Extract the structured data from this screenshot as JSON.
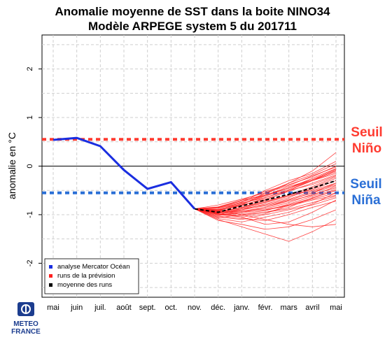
{
  "chart_data": {
    "type": "line",
    "title": "Anomalie moyenne de SST dans la boite NINO34",
    "subtitle": "Modèle ARPEGE system 5 du 201711",
    "ylabel": "anomalie en °C",
    "xlabel": "",
    "ylim": [
      -2.7,
      2.7
    ],
    "yticks": [
      -2,
      -1,
      0,
      1,
      2
    ],
    "categories": [
      "mai",
      "juin",
      "juil.",
      "août",
      "sept.",
      "oct.",
      "nov.",
      "déc.",
      "janv.",
      "févr.",
      "mars",
      "avril",
      "mai"
    ],
    "grid": true,
    "legend_position": "bottom-left",
    "legend": [
      {
        "label": "analyse Mercator Océan",
        "color": "#1a2ee0"
      },
      {
        "label": "runs de la prévision",
        "color": "#ff2020"
      },
      {
        "label": "moyenne des runs",
        "color": "#000000"
      }
    ],
    "thresholds": [
      {
        "label_line1": "Seuil",
        "label_line2": "Niño",
        "value": 0.55,
        "color": "#ff3b30"
      },
      {
        "label_line1": "Seuil",
        "label_line2": "Niña",
        "value": -0.55,
        "color": "#2a6fd6"
      }
    ],
    "analysis": {
      "name": "analyse Mercator Océan",
      "color": "#1a2ee0",
      "x": [
        0,
        1,
        2,
        3,
        4,
        5,
        6
      ],
      "y": [
        0.54,
        0.58,
        0.41,
        -0.08,
        -0.47,
        -0.33,
        -0.88
      ]
    },
    "mean_runs": {
      "name": "moyenne des runs",
      "color": "#000000",
      "x": [
        6,
        7,
        8,
        9,
        10,
        11,
        12
      ],
      "y": [
        -0.88,
        -0.95,
        -0.82,
        -0.7,
        -0.58,
        -0.45,
        -0.3
      ]
    },
    "runs": {
      "name": "runs de la prévision",
      "color": "#ff2020",
      "x": [
        6,
        7,
        8,
        9,
        10,
        11,
        12
      ],
      "members": [
        [
          -0.88,
          -0.92,
          -0.8,
          -0.55,
          -0.35,
          -0.1,
          0.28
        ],
        [
          -0.88,
          -1.0,
          -0.95,
          -0.85,
          -0.7,
          -0.55,
          -0.4
        ],
        [
          -0.88,
          -0.96,
          -1.05,
          -1.2,
          -1.15,
          -0.95,
          -0.7
        ],
        [
          -0.88,
          -0.85,
          -0.7,
          -0.6,
          -0.45,
          -0.25,
          -0.05
        ],
        [
          -0.88,
          -1.1,
          -1.25,
          -1.4,
          -1.55,
          -1.35,
          -1.1
        ],
        [
          -0.88,
          -0.9,
          -0.75,
          -0.5,
          -0.3,
          -0.15,
          0.1
        ],
        [
          -0.88,
          -0.98,
          -0.88,
          -0.75,
          -0.62,
          -0.5,
          -0.35
        ],
        [
          -0.88,
          -0.8,
          -0.68,
          -0.55,
          -0.4,
          -0.2,
          -0.02
        ],
        [
          -0.88,
          -1.02,
          -0.95,
          -0.9,
          -0.82,
          -0.7,
          -0.6
        ],
        [
          -0.88,
          -0.95,
          -0.85,
          -0.7,
          -0.5,
          -0.3,
          -0.15
        ],
        [
          -0.88,
          -0.9,
          -1.0,
          -1.1,
          -1.2,
          -1.25,
          -1.2
        ],
        [
          -0.88,
          -0.92,
          -0.78,
          -0.6,
          -0.42,
          -0.28,
          -0.1
        ],
        [
          -0.88,
          -0.97,
          -0.92,
          -0.88,
          -0.75,
          -0.58,
          -0.45
        ],
        [
          -0.88,
          -0.85,
          -0.72,
          -0.58,
          -0.35,
          -0.18,
          0.05
        ],
        [
          -0.88,
          -1.05,
          -1.1,
          -1.0,
          -0.9,
          -0.8,
          -0.65
        ],
        [
          -0.88,
          -0.93,
          -0.85,
          -0.72,
          -0.6,
          -0.48,
          -0.3
        ],
        [
          -0.88,
          -0.99,
          -1.02,
          -0.95,
          -0.85,
          -0.65,
          -0.5
        ],
        [
          -0.88,
          -0.87,
          -0.76,
          -0.65,
          -0.5,
          -0.38,
          -0.2
        ],
        [
          -0.88,
          -1.12,
          -1.2,
          -1.3,
          -1.25,
          -1.1,
          -0.9
        ],
        [
          -0.88,
          -0.94,
          -0.88,
          -0.8,
          -0.68,
          -0.52,
          -0.38
        ],
        [
          -0.88,
          -0.9,
          -0.82,
          -0.65,
          -0.48,
          -0.3,
          -0.12
        ],
        [
          -0.88,
          -1.0,
          -0.98,
          -0.92,
          -0.78,
          -0.62,
          -0.48
        ],
        [
          -0.88,
          -0.95,
          -0.9,
          -0.78,
          -0.65,
          -0.45,
          -0.25
        ],
        [
          -0.88,
          -1.08,
          -1.15,
          -1.05,
          -0.95,
          -0.78,
          -0.55
        ],
        [
          -0.88,
          -0.86,
          -0.74,
          -0.6,
          -0.45,
          -0.3,
          -0.08
        ],
        [
          -0.88,
          -0.96,
          -0.93,
          -0.85,
          -0.72,
          -0.6,
          -0.42
        ],
        [
          -0.88,
          -1.03,
          -1.08,
          -1.12,
          -1.0,
          -0.85,
          -0.72
        ],
        [
          -0.88,
          -0.91,
          -0.8,
          -0.68,
          -0.52,
          -0.35,
          -0.18
        ],
        [
          -0.88,
          -0.98,
          -0.9,
          -0.82,
          -0.7,
          -0.55,
          -0.35
        ],
        [
          -0.88,
          -0.89,
          -0.78,
          -0.62,
          -0.45,
          -0.28,
          -0.06
        ],
        [
          -0.88,
          -1.06,
          -1.0,
          -0.95,
          -0.88,
          -0.75,
          -0.62
        ],
        [
          -0.88,
          -0.93,
          -0.86,
          -0.74,
          -0.6,
          -0.42,
          -0.22
        ],
        [
          -0.88,
          -1.0,
          -1.05,
          -0.98,
          -0.8,
          -0.66,
          -0.5
        ],
        [
          -0.88,
          -0.84,
          -0.7,
          -0.52,
          -0.38,
          -0.22,
          0.0
        ],
        [
          -0.88,
          -0.97,
          -0.95,
          -0.9,
          -0.8,
          -0.68,
          -0.55
        ]
      ]
    }
  },
  "logo": {
    "line1": "METEO",
    "line2": "FRANCE"
  }
}
